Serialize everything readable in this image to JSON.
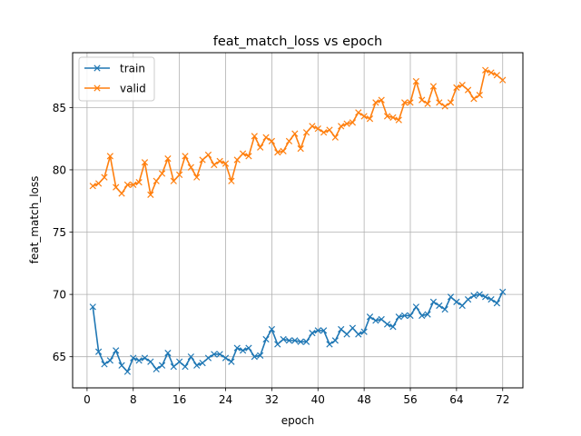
{
  "chart_data": {
    "type": "line",
    "title": "feat_match_loss vs epoch",
    "xlabel": "epoch",
    "ylabel": "feat_match_loss",
    "xlim": [
      -2.5,
      75.5
    ],
    "ylim": [
      62.5,
      89.4
    ],
    "xticks": [
      0,
      8,
      16,
      24,
      32,
      40,
      48,
      56,
      64,
      72
    ],
    "yticks": [
      65,
      70,
      75,
      80,
      85
    ],
    "grid": true,
    "legend_position": "top-left",
    "marker": "x",
    "x": [
      1,
      2,
      3,
      4,
      5,
      6,
      7,
      8,
      9,
      10,
      11,
      12,
      13,
      14,
      15,
      16,
      17,
      18,
      19,
      20,
      21,
      22,
      23,
      24,
      25,
      26,
      27,
      28,
      29,
      30,
      31,
      32,
      33,
      34,
      35,
      36,
      37,
      38,
      39,
      40,
      41,
      42,
      43,
      44,
      45,
      46,
      47,
      48,
      49,
      50,
      51,
      52,
      53,
      54,
      55,
      56,
      57,
      58,
      59,
      60,
      61,
      62,
      63,
      64,
      65,
      66,
      67,
      68,
      69,
      70,
      71,
      72
    ],
    "series": [
      {
        "name": "train",
        "color": "#1f77b4",
        "values": [
          69.0,
          65.4,
          64.4,
          64.7,
          65.5,
          64.3,
          63.8,
          64.9,
          64.7,
          64.9,
          64.6,
          64.0,
          64.3,
          65.3,
          64.2,
          64.6,
          64.2,
          65.0,
          64.3,
          64.5,
          64.9,
          65.2,
          65.2,
          64.9,
          64.6,
          65.7,
          65.5,
          65.7,
          65.0,
          65.1,
          66.4,
          67.2,
          66.0,
          66.4,
          66.3,
          66.3,
          66.2,
          66.2,
          66.9,
          67.1,
          67.1,
          66.0,
          66.3,
          67.2,
          66.8,
          67.3,
          66.8,
          67.0,
          68.2,
          67.9,
          68.0,
          67.6,
          67.4,
          68.2,
          68.3,
          68.3,
          69.0,
          68.3,
          68.4,
          69.4,
          69.1,
          68.8,
          69.8,
          69.4,
          69.1,
          69.6,
          69.9,
          70.0,
          69.8,
          69.6,
          69.3,
          70.2
        ]
      },
      {
        "name": "valid",
        "color": "#ff7f0e",
        "values": [
          78.7,
          78.9,
          79.4,
          81.1,
          78.6,
          78.1,
          78.8,
          78.8,
          79.0,
          80.6,
          78.0,
          79.1,
          79.7,
          80.9,
          79.1,
          79.6,
          81.1,
          80.2,
          79.4,
          80.8,
          81.2,
          80.4,
          80.7,
          80.5,
          79.1,
          80.8,
          81.3,
          81.1,
          82.7,
          81.8,
          82.6,
          82.3,
          81.4,
          81.5,
          82.3,
          82.9,
          81.7,
          83.0,
          83.5,
          83.3,
          83.0,
          83.2,
          82.6,
          83.5,
          83.7,
          83.8,
          84.6,
          84.3,
          84.1,
          85.4,
          85.6,
          84.3,
          84.2,
          84.0,
          85.4,
          85.4,
          87.1,
          85.6,
          85.3,
          86.7,
          85.4,
          85.1,
          85.4,
          86.6,
          86.8,
          86.4,
          85.7,
          86.0,
          88.0,
          87.8,
          87.6,
          87.2
        ]
      }
    ]
  }
}
